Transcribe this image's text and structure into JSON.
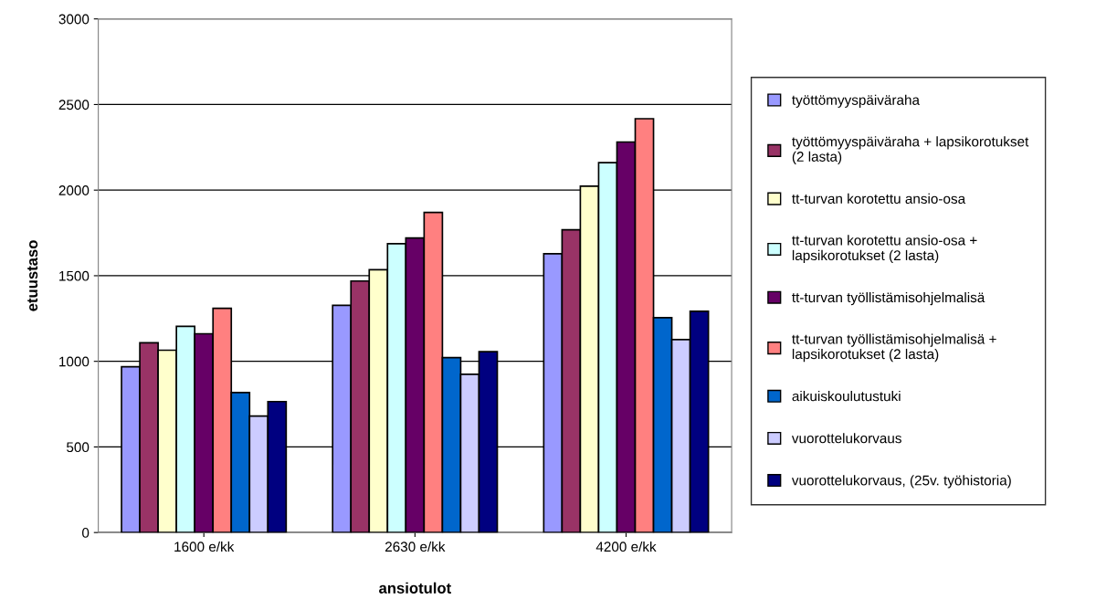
{
  "chart_data": {
    "type": "bar",
    "xlabel": "ansiotulot",
    "ylabel": "etuustaso",
    "categories": [
      "1600 e/kk",
      "2630 e/kk",
      "4200 e/kk"
    ],
    "series": [
      {
        "name": "työttömyyspäiväraha",
        "color": "#9999ff",
        "values": [
          968,
          1327,
          1628
        ]
      },
      {
        "name": "työttömyyspäiväraha + lapsikorotukset\n(2 lasta)",
        "color": "#993366",
        "values": [
          1108,
          1469,
          1768
        ]
      },
      {
        "name": "tt-turvan korotettu ansio-osa",
        "color": "#ffffcc",
        "values": [
          1065,
          1535,
          2023
        ]
      },
      {
        "name": "tt-turvan korotettu ansio-osa +\nlapsikorotukset (2 lasta)",
        "color": "#ccffff",
        "values": [
          1204,
          1687,
          2160
        ]
      },
      {
        "name": "tt-turvan työllistämisohjelmalisä",
        "color": "#660066",
        "values": [
          1161,
          1720,
          2281
        ]
      },
      {
        "name": "tt-turvan työllistämisohjelmalisä +\nlapsikorotukset (2 lasta)",
        "color": "#ff8080",
        "values": [
          1310,
          1870,
          2417
        ]
      },
      {
        "name": "aikuiskoulutustuki",
        "color": "#0066cc",
        "values": [
          818,
          1022,
          1255
        ]
      },
      {
        "name": "vuorottelukorvaus",
        "color": "#ccccff",
        "values": [
          680,
          924,
          1127
        ]
      },
      {
        "name": "vuorottelukorvaus, (25v. työhistoria)",
        "color": "#000080",
        "values": [
          765,
          1056,
          1292
        ]
      }
    ],
    "ylim": [
      0,
      3000
    ],
    "yticks": [
      0,
      500,
      1000,
      1500,
      2000,
      2500,
      3000
    ],
    "grid": "y",
    "legend": "right"
  }
}
